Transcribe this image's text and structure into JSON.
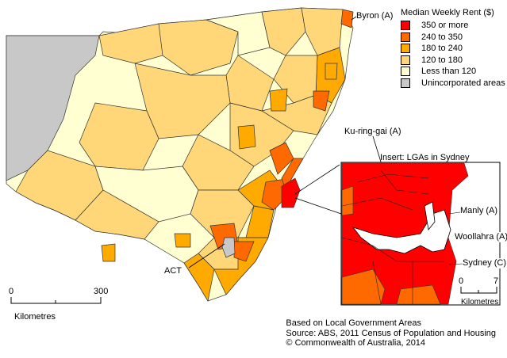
{
  "legend": {
    "title": "Median Weekly Rent ($)",
    "items": [
      {
        "label": "350 or more",
        "color": "#ff0000"
      },
      {
        "label": "240 to 350",
        "color": "#ff6a00"
      },
      {
        "label": "180 to 240",
        "color": "#ffaa00"
      },
      {
        "label": "120 to 180",
        "color": "#ffd778"
      },
      {
        "label": "Less than 120",
        "color": "#ffffd2"
      },
      {
        "label": "Unincorporated areas",
        "color": "#c8c8c8"
      }
    ]
  },
  "labels": {
    "byron": "Byron (A)",
    "kuringgai": "Ku-ring-gai (A)",
    "act": "ACT",
    "insert_title": "Insert: LGAs in Sydney",
    "manly": "Manly (A)",
    "woollahra": "Woollahra (A)",
    "sydney": "Sydney (C)"
  },
  "scale_main": {
    "start": "0",
    "end": "300",
    "unit": "Kilometres"
  },
  "scale_insert": {
    "start": "0",
    "end": "7",
    "unit": "Kilometres"
  },
  "credits": [
    "Based on Local Government Areas",
    "Source: ABS, 2011 Census of Population and Housing",
    "© Commonwealth of Australia, 2014"
  ]
}
